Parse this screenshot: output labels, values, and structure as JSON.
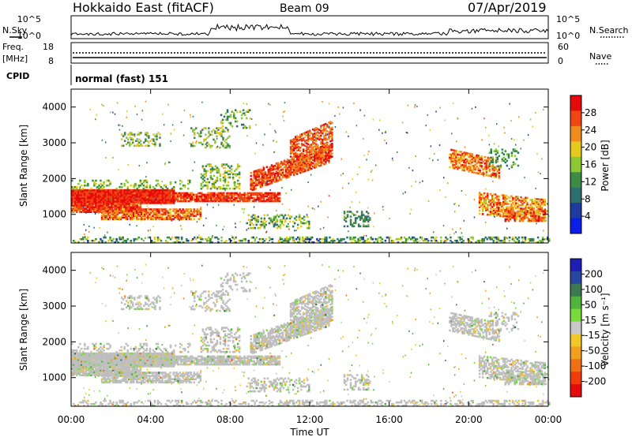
{
  "header": {
    "station": "Hokkaido East (fitACF)",
    "beam": "Beam 09",
    "date": "07/Apr/2019"
  },
  "top_panels": {
    "nsky_label": "N.Sky",
    "nsearch_label": "N.Search",
    "noise_ticks_left": [
      "10^5",
      "10^0"
    ],
    "noise_ticks_right": [
      "10^5",
      "10^0"
    ],
    "freq_label": "Freq.",
    "freq_unit": "[MHz]",
    "freq_ticks": [
      "18",
      "8"
    ],
    "nave_ticks": [
      "60",
      "0"
    ],
    "nave_label": "Nave",
    "cpid_label": "CPID",
    "cpid_value": "normal (fast) 151"
  },
  "chart_data": [
    {
      "type": "heatmap",
      "name": "power",
      "ylabel": "Slant Range [km]",
      "yticks": [
        "4000",
        "3000",
        "2000",
        "1000"
      ],
      "ylim": [
        200,
        4500
      ],
      "colorbar_label": "Power [dB]",
      "colorbar_ticks": [
        "28",
        "24",
        "20",
        "16",
        "12",
        "8",
        "4"
      ],
      "colorbar_range": [
        0,
        30
      ],
      "colors": [
        "#0a1ee6",
        "#1e3ca0",
        "#2e6e6e",
        "#3c8c46",
        "#8cc832",
        "#e6c81e",
        "#f08c1e",
        "#f04614",
        "#e60a0a"
      ]
    },
    {
      "type": "heatmap",
      "name": "velocity",
      "ylabel": "Slant Range [km]",
      "yticks": [
        "4000",
        "3000",
        "2000",
        "1000"
      ],
      "ylim": [
        200,
        4500
      ],
      "colorbar_label": "Velocity [m s⁻¹]",
      "colorbar_ticks": [
        "200",
        "100",
        "50",
        "15",
        "-15",
        "-50",
        "-100",
        "-200"
      ],
      "colorbar_range": [
        -250,
        250
      ],
      "ground_scatter_color": "#bebebe",
      "colors": [
        "#1e1eb4",
        "#2846a0",
        "#3c7850",
        "#50b43c",
        "#78dc3c",
        "#c8c8c8",
        "#f0c828",
        "#f0a01e",
        "#f06e14",
        "#f03c0a",
        "#e60a0a"
      ]
    }
  ],
  "time_axis": {
    "ticks": [
      "00:00",
      "04:00",
      "08:00",
      "12:00",
      "16:00",
      "20:00",
      "00:00"
    ],
    "label": "Time UT",
    "range_hours": [
      0,
      24
    ]
  }
}
